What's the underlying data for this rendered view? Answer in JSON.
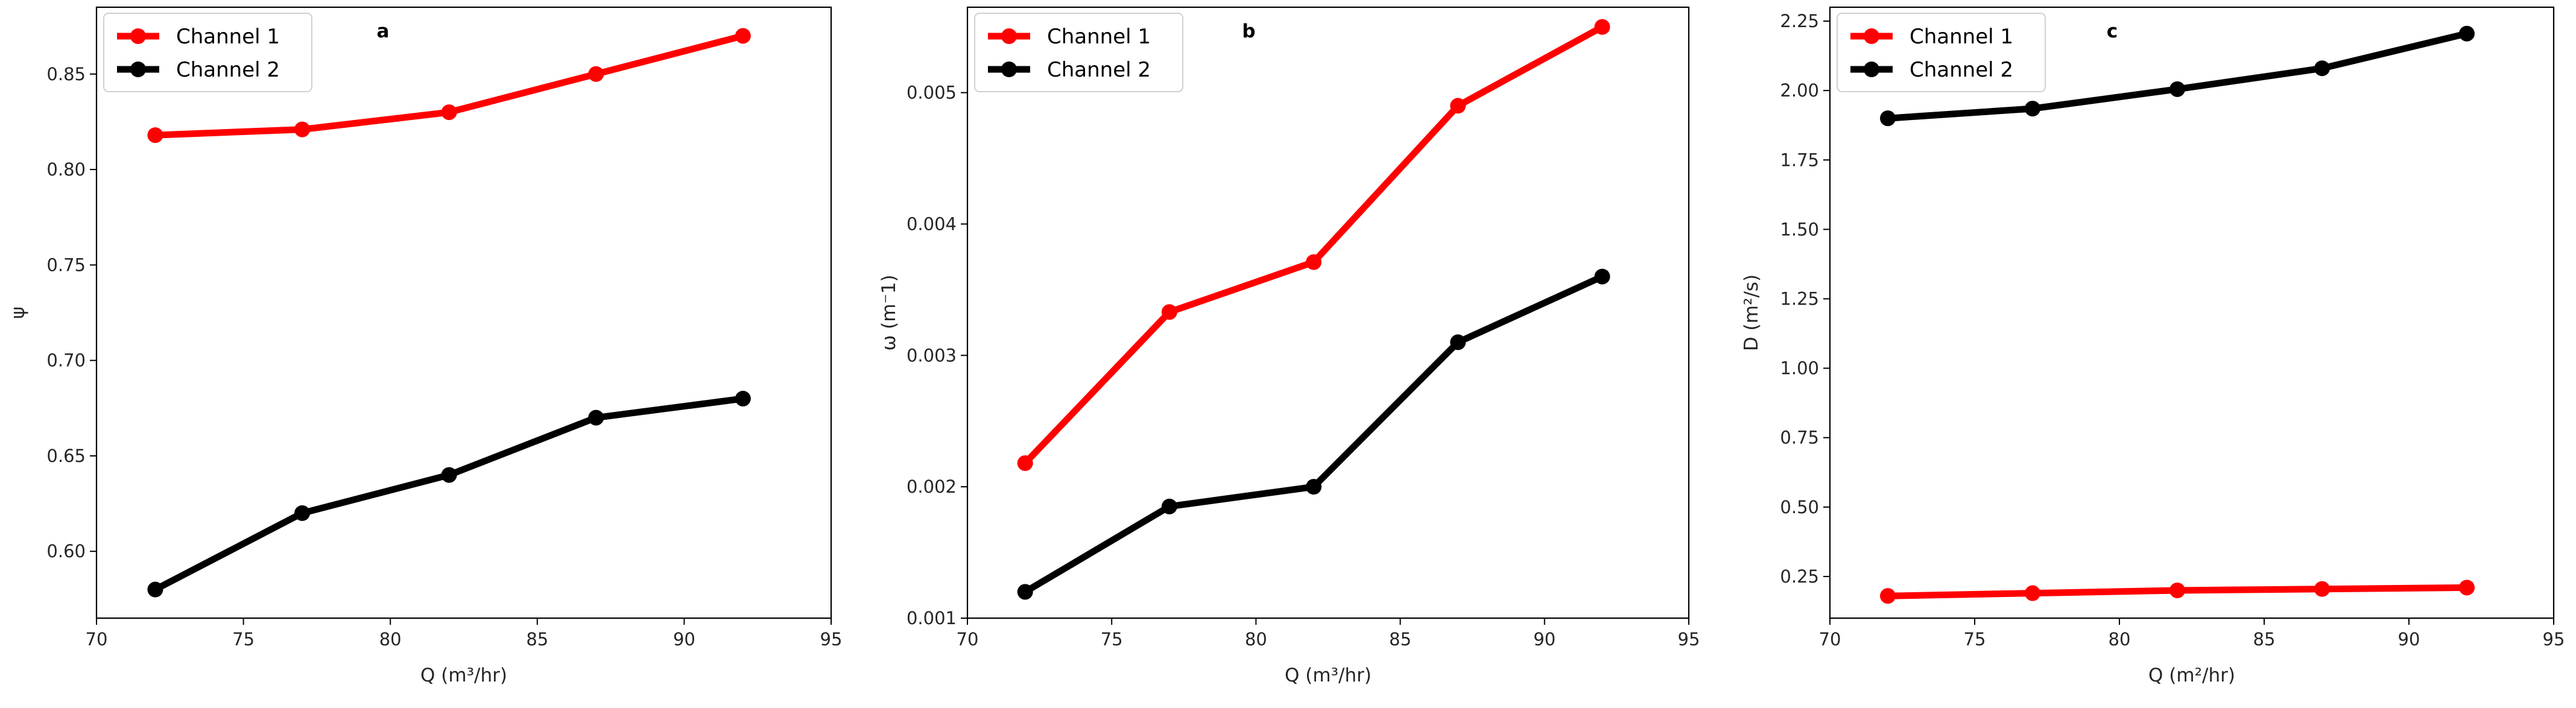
{
  "chart_data": [
    {
      "type": "line",
      "panel_label": "a",
      "xlabel": "Q (m³/hr)",
      "ylabel": "ψ",
      "xlim": [
        70,
        95
      ],
      "ylim": [
        0.565,
        0.885
      ],
      "xticks": [
        70,
        75,
        80,
        85,
        90,
        95
      ],
      "yticks": [
        "0.60",
        "0.65",
        "0.70",
        "0.75",
        "0.80",
        "0.85"
      ],
      "legend_position": "top-left",
      "x": [
        72,
        77,
        82,
        87,
        92
      ],
      "series": [
        {
          "name": "Channel 1",
          "color": "#ff0000",
          "values": [
            0.818,
            0.821,
            0.83,
            0.85,
            0.87
          ]
        },
        {
          "name": "Channel 2",
          "color": "#000000",
          "values": [
            0.58,
            0.62,
            0.64,
            0.67,
            0.68
          ]
        }
      ]
    },
    {
      "type": "line",
      "panel_label": "b",
      "xlabel": "Q (m³/hr)",
      "ylabel": "ω (m⁻1)",
      "xlim": [
        70,
        95
      ],
      "ylim": [
        0.001,
        0.00565
      ],
      "xticks": [
        70,
        75,
        80,
        85,
        90,
        95
      ],
      "yticks": [
        "0.001",
        "0.002",
        "0.003",
        "0.004",
        "0.005"
      ],
      "legend_position": "top-left",
      "x": [
        72,
        77,
        82,
        87,
        92
      ],
      "series": [
        {
          "name": "Channel 1",
          "color": "#ff0000",
          "values": [
            0.00218,
            0.00333,
            0.00371,
            0.0049,
            0.0055
          ]
        },
        {
          "name": "Channel 2",
          "color": "#000000",
          "values": [
            0.0012,
            0.00185,
            0.002,
            0.0031,
            0.0036
          ]
        }
      ]
    },
    {
      "type": "line",
      "panel_label": "c",
      "xlabel": "Q (m²/hr)",
      "ylabel": "D (m²/s)",
      "xlim": [
        70,
        95
      ],
      "ylim": [
        0.1,
        2.3
      ],
      "xticks": [
        70,
        75,
        80,
        85,
        90,
        95
      ],
      "yticks": [
        "0.25",
        "0.50",
        "0.75",
        "1.00",
        "1.25",
        "1.50",
        "1.75",
        "2.00",
        "2.25"
      ],
      "legend_position": "top-left",
      "x": [
        72,
        77,
        82,
        87,
        92
      ],
      "series": [
        {
          "name": "Channel 1",
          "color": "#ff0000",
          "values": [
            0.18,
            0.19,
            0.2,
            0.205,
            0.21
          ]
        },
        {
          "name": "Channel 2",
          "color": "#000000",
          "values": [
            1.9,
            1.935,
            2.005,
            2.08,
            2.205
          ]
        }
      ]
    }
  ]
}
